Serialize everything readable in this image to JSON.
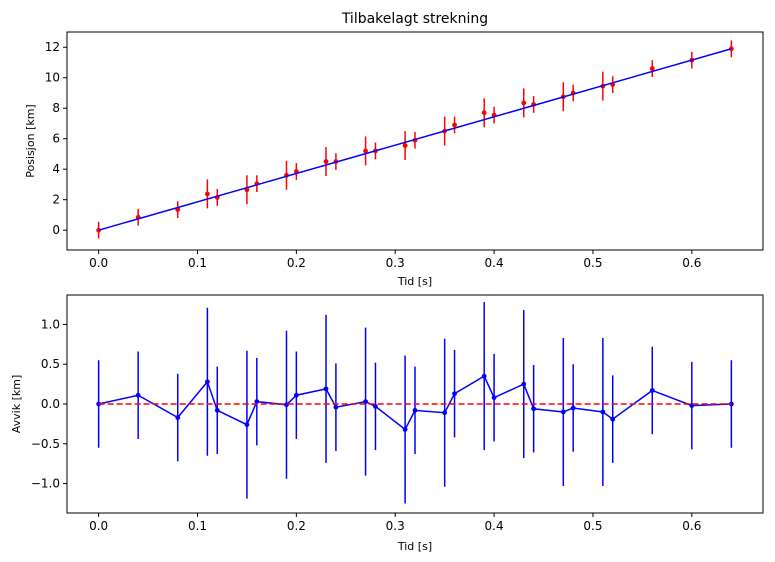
{
  "chart_data": [
    {
      "type": "scatter",
      "title": "Tilbakelagt strekning",
      "xlabel": "Tid [s]",
      "ylabel": "Posisjon [km]",
      "xlim": [
        -0.032,
        0.672
      ],
      "ylim": [
        -1.3,
        13.0
      ],
      "xticks": [
        0.0,
        0.1,
        0.2,
        0.3,
        0.4,
        0.5,
        0.6
      ],
      "xtick_labels": [
        "0.0",
        "0.1",
        "0.2",
        "0.3",
        "0.4",
        "0.5",
        "0.6"
      ],
      "yticks": [
        0,
        2,
        4,
        6,
        8,
        10,
        12
      ],
      "ytick_labels": [
        "0",
        "2",
        "4",
        "6",
        "8",
        "10",
        "12"
      ],
      "grid": false,
      "series": [
        {
          "kind": "errorbar-points",
          "color": "#ff0000",
          "x": [
            0.0,
            0.04,
            0.08,
            0.11,
            0.12,
            0.15,
            0.16,
            0.19,
            0.2,
            0.23,
            0.24,
            0.27,
            0.28,
            0.31,
            0.32,
            0.35,
            0.36,
            0.39,
            0.4,
            0.43,
            0.44,
            0.47,
            0.48,
            0.51,
            0.52,
            0.56,
            0.6,
            0.64
          ],
          "y": [
            0.0,
            0.85,
            1.35,
            2.38,
            2.15,
            2.65,
            3.05,
            3.6,
            3.85,
            4.5,
            4.5,
            5.2,
            5.2,
            5.55,
            5.9,
            6.5,
            6.9,
            7.7,
            7.55,
            8.35,
            8.25,
            8.75,
            9.0,
            9.45,
            9.55,
            10.6,
            11.15,
            11.9
          ],
          "yerr": [
            0.55,
            0.55,
            0.55,
            0.95,
            0.55,
            0.95,
            0.55,
            0.95,
            0.55,
            0.95,
            0.55,
            0.95,
            0.55,
            0.95,
            0.55,
            0.95,
            0.55,
            0.95,
            0.55,
            0.95,
            0.55,
            0.95,
            0.55,
            0.95,
            0.55,
            0.55,
            0.55,
            0.55
          ]
        },
        {
          "kind": "line",
          "color": "#0000ff",
          "x": [
            0.0,
            0.64
          ],
          "y": [
            0.0,
            11.9
          ]
        }
      ]
    },
    {
      "type": "line",
      "title": "",
      "xlabel": "Tid [s]",
      "ylabel": "Avvik [km]",
      "xlim": [
        -0.032,
        0.672
      ],
      "ylim": [
        -1.37,
        1.37
      ],
      "xticks": [
        0.0,
        0.1,
        0.2,
        0.3,
        0.4,
        0.5,
        0.6
      ],
      "xtick_labels": [
        "0.0",
        "0.1",
        "0.2",
        "0.3",
        "0.4",
        "0.5",
        "0.6"
      ],
      "yticks": [
        -1.0,
        -0.5,
        0.0,
        0.5,
        1.0
      ],
      "ytick_labels": [
        "−1.0",
        "−0.5",
        "0.0",
        "0.5",
        "1.0"
      ],
      "grid": false,
      "series": [
        {
          "kind": "errorbar-line",
          "color": "#0000ff",
          "x": [
            0.0,
            0.04,
            0.08,
            0.11,
            0.12,
            0.15,
            0.16,
            0.19,
            0.2,
            0.23,
            0.24,
            0.27,
            0.28,
            0.31,
            0.32,
            0.35,
            0.36,
            0.39,
            0.4,
            0.43,
            0.44,
            0.47,
            0.48,
            0.51,
            0.52,
            0.56,
            0.6,
            0.64
          ],
          "y": [
            0.0,
            0.11,
            -0.17,
            0.28,
            -0.08,
            -0.26,
            0.03,
            -0.01,
            0.11,
            0.19,
            -0.04,
            0.03,
            -0.03,
            -0.32,
            -0.08,
            -0.11,
            0.13,
            0.35,
            0.08,
            0.25,
            -0.06,
            -0.1,
            -0.05,
            -0.1,
            -0.19,
            0.17,
            -0.02,
            0.0
          ],
          "yerr": [
            0.55,
            0.55,
            0.55,
            0.93,
            0.55,
            0.93,
            0.55,
            0.93,
            0.55,
            0.93,
            0.55,
            0.93,
            0.55,
            0.93,
            0.55,
            0.93,
            0.55,
            0.93,
            0.55,
            0.93,
            0.55,
            0.93,
            0.55,
            0.93,
            0.55,
            0.55,
            0.55,
            0.55
          ]
        },
        {
          "kind": "dashed-line",
          "color": "#ff0000",
          "x": [
            0.0,
            0.64
          ],
          "y": [
            0.0,
            0.0
          ]
        }
      ]
    }
  ]
}
